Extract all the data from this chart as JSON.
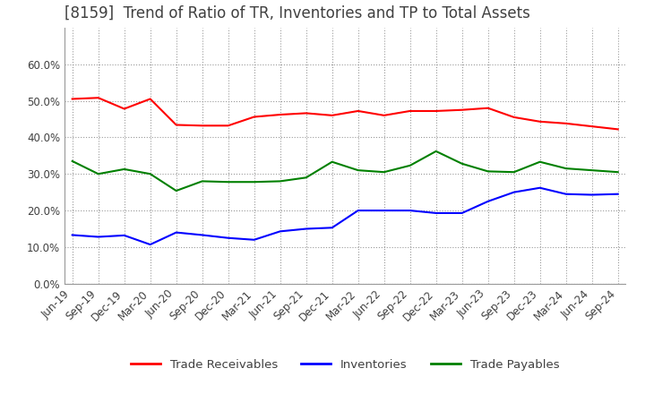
{
  "title": "[8159]  Trend of Ratio of TR, Inventories and TP to Total Assets",
  "x_labels": [
    "Jun-19",
    "Sep-19",
    "Dec-19",
    "Mar-20",
    "Jun-20",
    "Sep-20",
    "Dec-20",
    "Mar-21",
    "Jun-21",
    "Sep-21",
    "Dec-21",
    "Mar-22",
    "Jun-22",
    "Sep-22",
    "Dec-22",
    "Mar-23",
    "Jun-23",
    "Sep-23",
    "Dec-23",
    "Mar-24",
    "Jun-24",
    "Sep-24"
  ],
  "trade_receivables": [
    0.505,
    0.508,
    0.478,
    0.505,
    0.434,
    0.432,
    0.432,
    0.456,
    0.462,
    0.466,
    0.46,
    0.472,
    0.46,
    0.472,
    0.472,
    0.475,
    0.48,
    0.455,
    0.443,
    0.438,
    0.43,
    0.422
  ],
  "inventories": [
    0.133,
    0.128,
    0.132,
    0.107,
    0.14,
    0.133,
    0.125,
    0.12,
    0.143,
    0.15,
    0.153,
    0.2,
    0.2,
    0.2,
    0.193,
    0.193,
    0.225,
    0.25,
    0.262,
    0.245,
    0.243,
    0.245
  ],
  "trade_payables": [
    0.335,
    0.3,
    0.313,
    0.3,
    0.254,
    0.28,
    0.278,
    0.278,
    0.28,
    0.29,
    0.333,
    0.31,
    0.305,
    0.323,
    0.362,
    0.328,
    0.307,
    0.305,
    0.333,
    0.315,
    0.31,
    0.305
  ],
  "tr_color": "#FF0000",
  "inv_color": "#0000FF",
  "tp_color": "#008000",
  "background_color": "#FFFFFF",
  "grid_color": "#999999",
  "title_color": "#404040",
  "ylim": [
    0.0,
    0.7
  ],
  "yticks": [
    0.0,
    0.1,
    0.2,
    0.3,
    0.4,
    0.5,
    0.6
  ],
  "legend_labels": [
    "Trade Receivables",
    "Inventories",
    "Trade Payables"
  ],
  "title_fontsize": 12,
  "tick_fontsize": 8.5,
  "legend_fontsize": 9.5
}
